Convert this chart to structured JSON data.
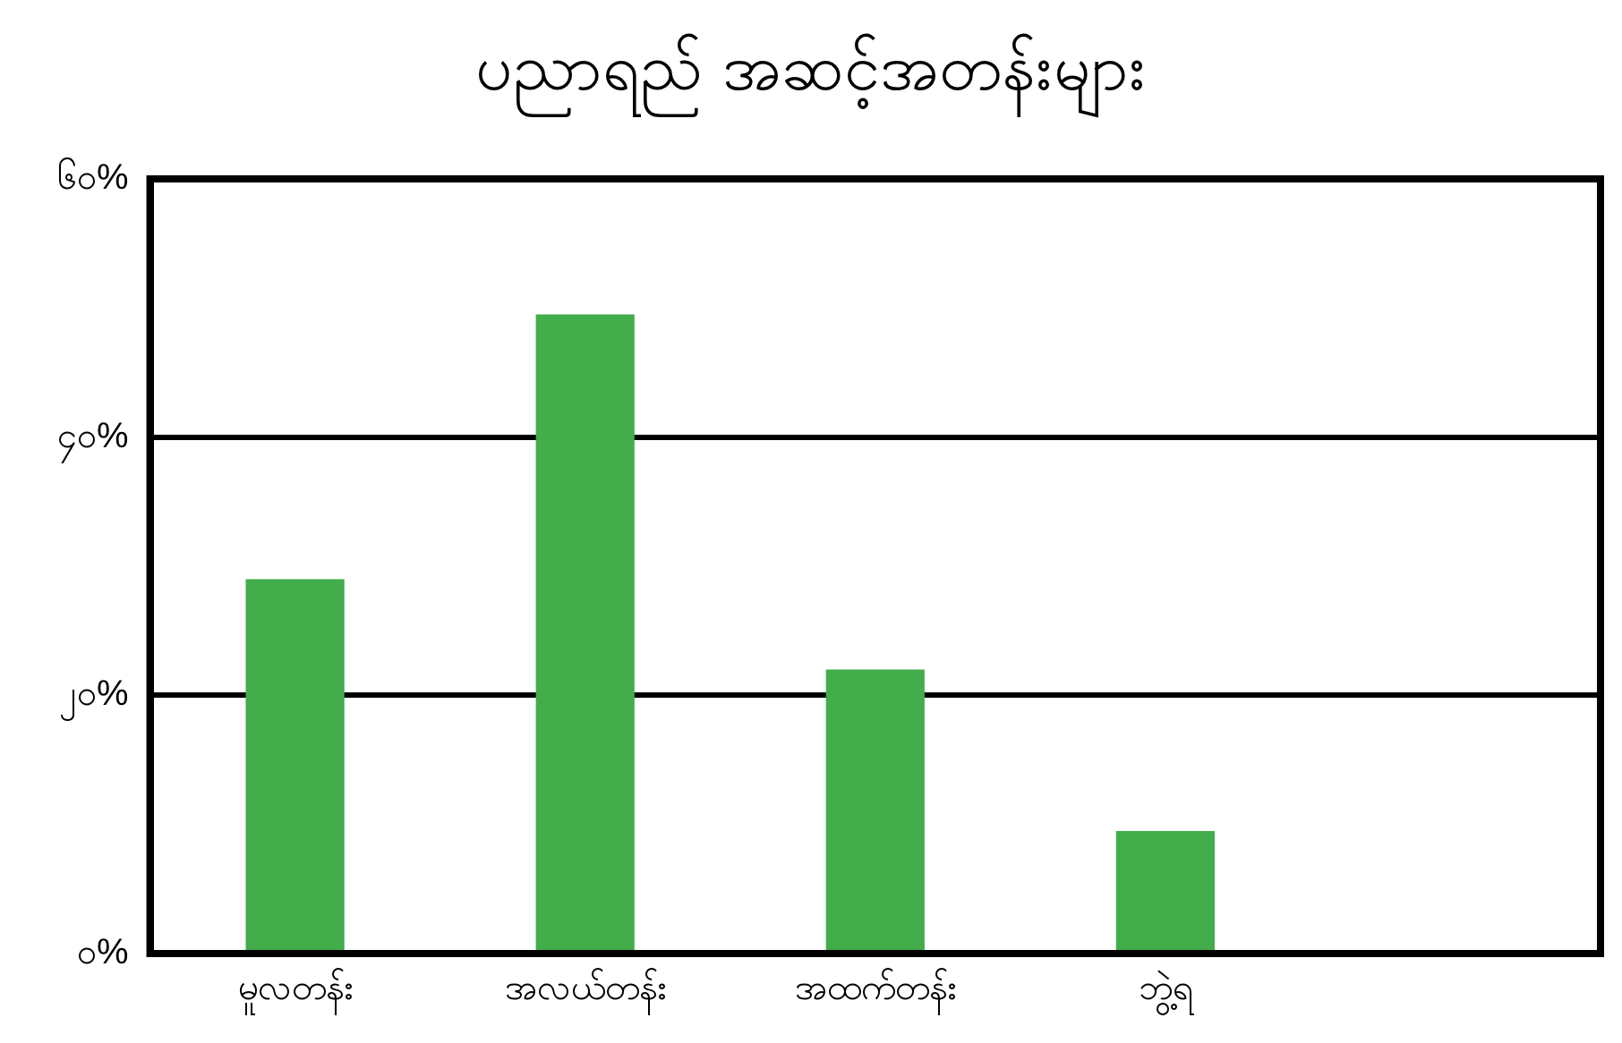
{
  "chart_data": {
    "type": "bar",
    "title": "ပညာရည် အဆင့်အတန်းများ",
    "categories": [
      "မူလတန်း",
      "အလယ်တန်း",
      "အထက်တန်း",
      "ဘွဲ့ရ",
      null
    ],
    "values": [
      29,
      49.5,
      22,
      9.5,
      null
    ],
    "color": "#43ac4b",
    "ylim": [
      0,
      60
    ],
    "yticks": [
      {
        "value": 0,
        "label": "၀%"
      },
      {
        "value": 20,
        "label": "၂၀%"
      },
      {
        "value": 40,
        "label": "၄၀%"
      },
      {
        "value": 60,
        "label": "၆၀%"
      }
    ],
    "grid": "y",
    "legend": false
  }
}
